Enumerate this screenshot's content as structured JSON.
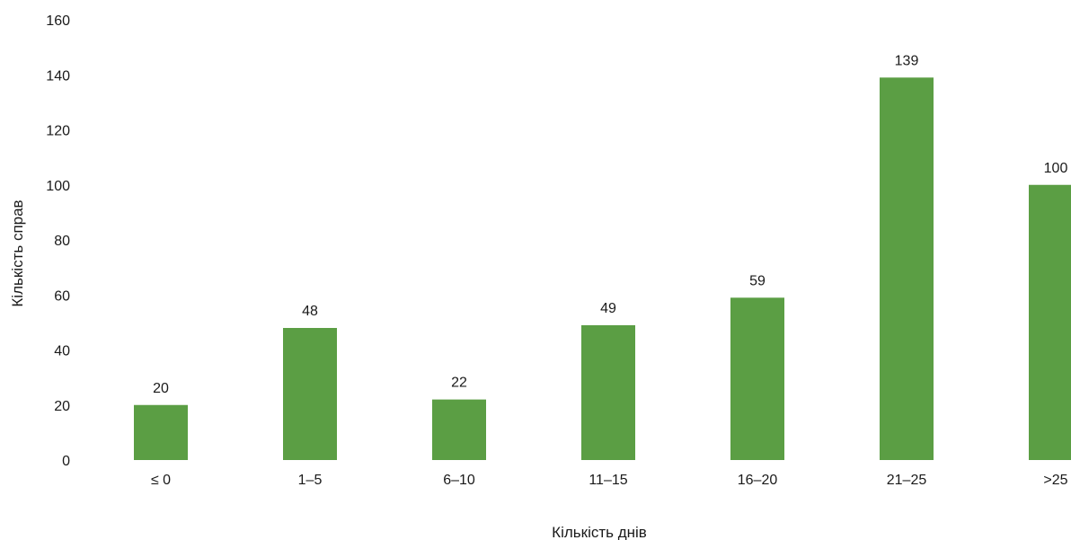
{
  "chart_data": {
    "type": "bar",
    "categories": [
      "≤ 0",
      "1–5",
      "6–10",
      "11–15",
      "16–20",
      "21–25",
      ">25"
    ],
    "values": [
      20,
      48,
      22,
      49,
      59,
      139,
      100
    ],
    "data_labels": [
      "20",
      "48",
      "22",
      "49",
      "59",
      "139",
      "100"
    ],
    "title": "",
    "xlabel": "Кількість днів",
    "ylabel": "Кількість справ",
    "ylim": [
      0,
      160
    ],
    "yticks": [
      0,
      20,
      40,
      60,
      80,
      100,
      120,
      140,
      160
    ],
    "ytick_labels": [
      "0",
      "20",
      "40",
      "60",
      "80",
      "100",
      "120",
      "140",
      "160"
    ],
    "grid": false,
    "legend": "none",
    "bar_color": "#5b9e44"
  }
}
